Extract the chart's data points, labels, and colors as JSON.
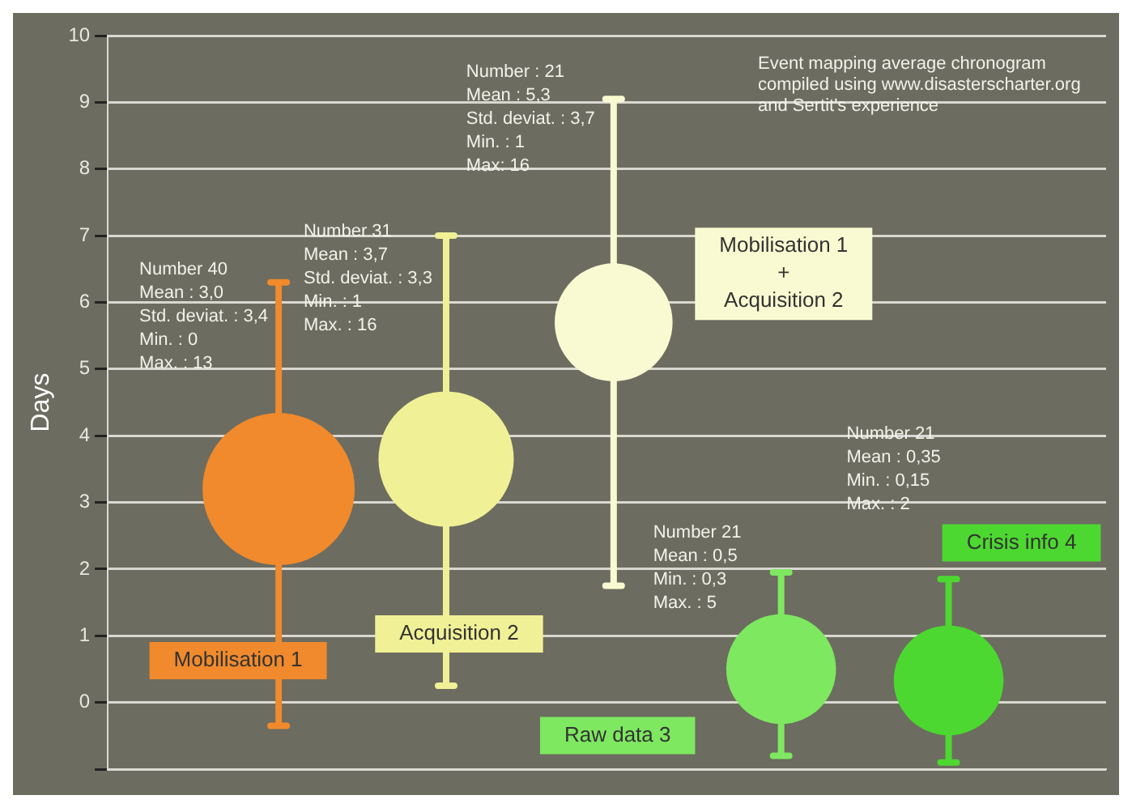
{
  "chart_data": {
    "type": "bubble",
    "ylabel": "Days",
    "categories": [
      null,
      null,
      null,
      null,
      null
    ],
    "values": [
      3.2,
      3.65,
      5.7,
      0.5,
      0.33
    ],
    "sizes": [
      1,
      0.79,
      0.6,
      0.52,
      0.52
    ],
    "errors": [
      [
        -0.35,
        6.3
      ],
      [
        0.25,
        7.0
      ],
      [
        1.75,
        9.05
      ],
      [
        -0.8,
        1.95
      ],
      [
        -0.9,
        1.85
      ]
    ],
    "colors": [
      "#f08a2c",
      "#f0f096",
      "#fafad2",
      "#7ee860",
      "#4cd830"
    ],
    "ylim": [
      -1,
      10
    ],
    "yticks": [
      {
        "value": -1,
        "label": null
      },
      0,
      1,
      2,
      3,
      4,
      5,
      6,
      7,
      8,
      9,
      10
    ],
    "grid": "y",
    "tick_labels": "y",
    "annotations": [
      "Mobilisation 1",
      "Acquisition 2",
      "Mobilisation 1\n+\nAcquisition 2",
      "Raw data 3",
      "Crisis info 4",
      "Number 40\nMean : 3,0\nStd. deviat. : 3,4\nMin. : 0\nMax. : 13",
      "Number 31\nMean : 3,7\nStd. deviat. : 3,3\nMin. : 1\nMax. : 16",
      "Number : 21\nMean : 5,3\nStd. deviat. : 3,7\nMin. : 1\nMax: 16",
      "Number 21\nMean : 0,5\nMin. : 0,3\nMax. : 5",
      "Number 21\nMean : 0,35\nMin. : 0,15\nMax. : 2",
      "Event mapping average chronogram\ncompiled using www.disasterscharter.org\nand Sertit's experience"
    ]
  }
}
